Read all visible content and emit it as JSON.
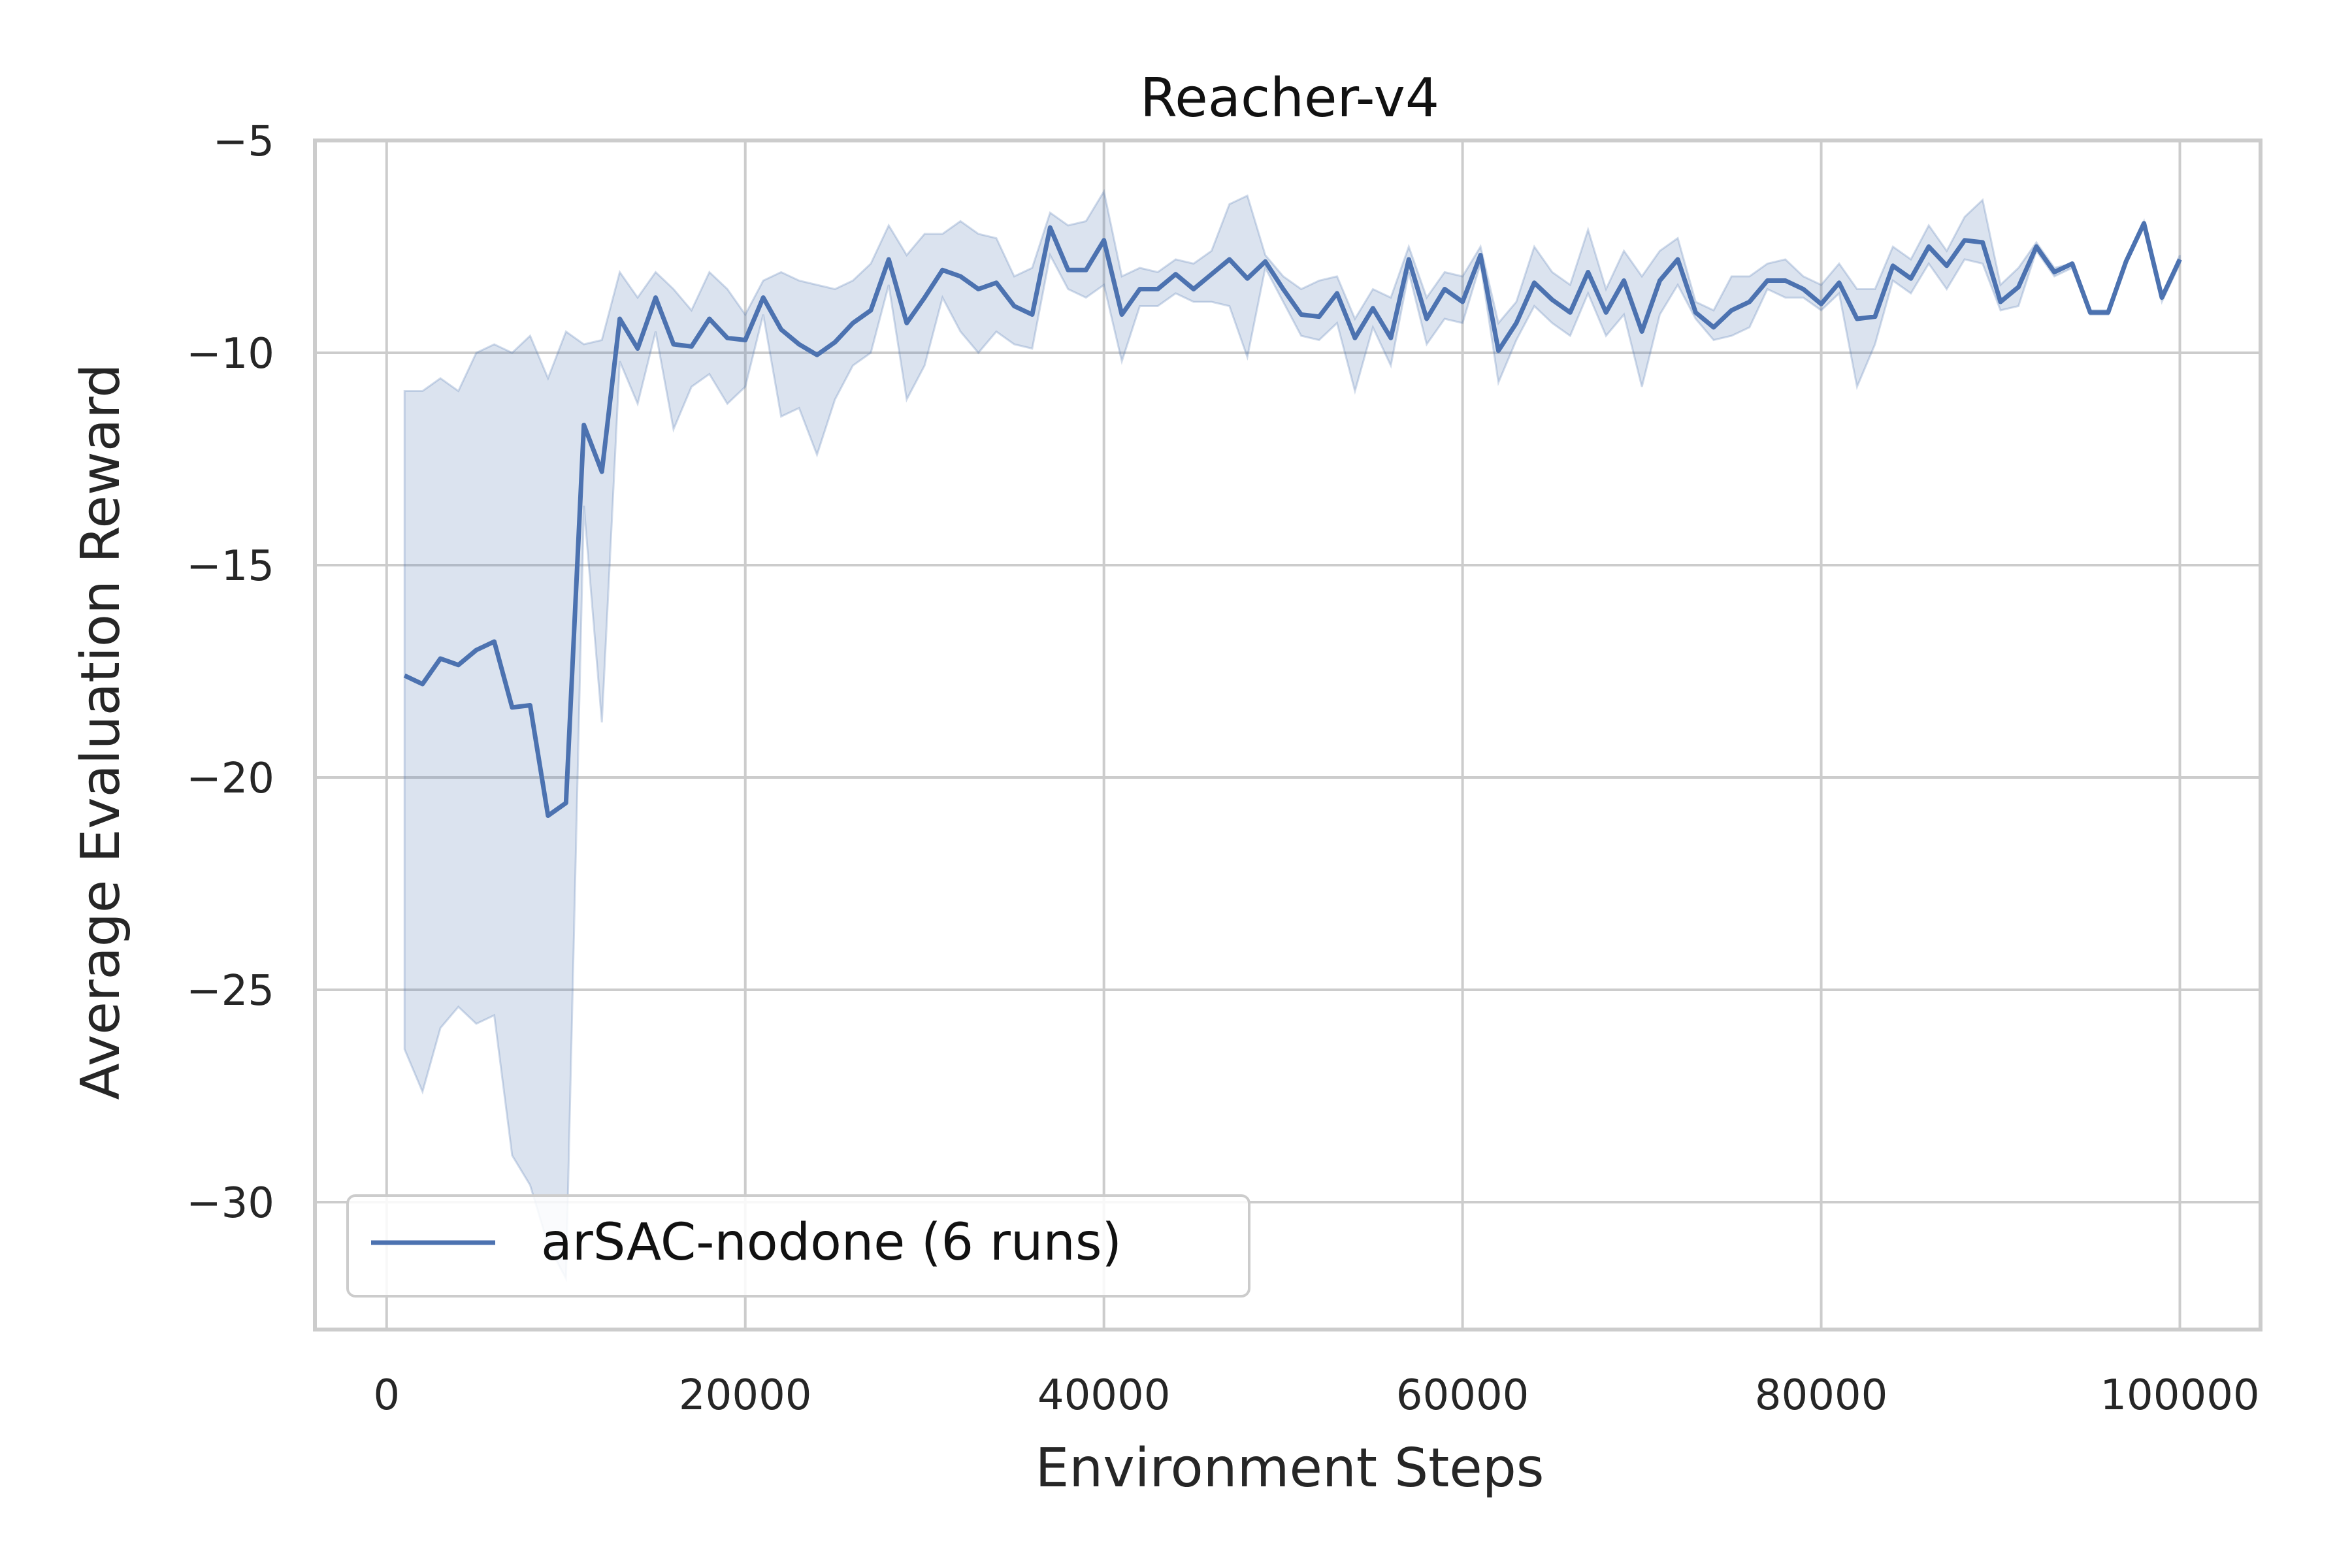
{
  "chart_data": {
    "type": "line",
    "title": "Reacher-v4",
    "xlabel": "Environment Steps",
    "ylabel": "Average Evaluation Reward",
    "xlim": [
      -4000,
      104500
    ],
    "ylim": [
      -33,
      -5
    ],
    "x_ticks": [
      0,
      20000,
      40000,
      60000,
      80000,
      100000
    ],
    "x_tick_labels": [
      "0",
      "20000",
      "40000",
      "60000",
      "80000",
      "100000"
    ],
    "y_ticks": [
      -5,
      -10,
      -15,
      -20,
      -25,
      -30
    ],
    "y_tick_labels": [
      "−5",
      "−10",
      "−15",
      "−20",
      "−25",
      "−30"
    ],
    "grid": true,
    "legend_position": "lower-left",
    "colors": {
      "line": "#4c72b0",
      "band": "#4c72b0"
    },
    "series": [
      {
        "name": "arSAC-nodone (6 runs)",
        "x": [
          1000,
          2000,
          3000,
          4000,
          5000,
          6000,
          7000,
          8000,
          9000,
          10000,
          11000,
          12000,
          13000,
          14000,
          15000,
          16000,
          17000,
          18000,
          19000,
          20000,
          21000,
          22000,
          23000,
          24000,
          25000,
          26000,
          27000,
          28000,
          29000,
          30000,
          31000,
          32000,
          33000,
          34000,
          35000,
          36000,
          37000,
          38000,
          39000,
          40000,
          41000,
          42000,
          43000,
          44000,
          45000,
          46000,
          47000,
          48000,
          49000,
          50000,
          51000,
          52000,
          53000,
          54000,
          55000,
          56000,
          57000,
          58000,
          59000,
          60000,
          61000,
          62000,
          63000,
          64000,
          65000,
          66000,
          67000,
          68000,
          69000,
          70000,
          71000,
          72000,
          73000,
          74000,
          75000,
          76000,
          77000,
          78000,
          79000,
          80000,
          81000,
          82000,
          83000,
          84000,
          85000,
          86000,
          87000,
          88000,
          89000,
          90000,
          91000,
          92000,
          93000,
          94000,
          95000,
          96000,
          97000,
          98000,
          99000,
          100000
        ],
        "y": [
          -17.6,
          -17.8,
          -17.2,
          -17.35,
          -17.0,
          -16.8,
          -18.35,
          -18.3,
          -20.9,
          -20.6,
          -11.7,
          -12.8,
          -9.2,
          -9.9,
          -8.7,
          -9.8,
          -9.85,
          -9.2,
          -9.65,
          -9.7,
          -8.7,
          -9.45,
          -9.8,
          -10.05,
          -9.75,
          -9.3,
          -9.0,
          -7.8,
          -9.3,
          -8.7,
          -8.05,
          -8.2,
          -8.5,
          -8.35,
          -8.9,
          -9.1,
          -7.05,
          -8.05,
          -8.05,
          -7.35,
          -9.1,
          -8.5,
          -8.5,
          -8.15,
          -8.5,
          -8.15,
          -7.8,
          -8.25,
          -7.85,
          -8.5,
          -9.1,
          -9.15,
          -8.6,
          -9.65,
          -8.95,
          -9.65,
          -7.8,
          -9.2,
          -8.5,
          -8.8,
          -7.7,
          -9.95,
          -9.3,
          -8.35,
          -8.75,
          -9.05,
          -8.1,
          -9.05,
          -8.3,
          -9.5,
          -8.3,
          -7.8,
          -9.05,
          -9.4,
          -9.0,
          -8.8,
          -8.3,
          -8.3,
          -8.5,
          -8.85,
          -8.35,
          -9.2,
          -9.15,
          -7.95,
          -8.25,
          -7.5,
          -7.95,
          -7.35,
          -7.4,
          -8.8,
          -8.45,
          -7.5,
          -8.1,
          -7.9,
          -9.05,
          -9.05,
          -7.85,
          -6.95,
          -8.7,
          -7.8
        ],
        "y_upper": [
          -10.9,
          -10.9,
          -10.6,
          -10.9,
          -10.0,
          -9.8,
          -10.0,
          -9.6,
          -10.6,
          -9.5,
          -9.8,
          -9.7,
          -8.1,
          -8.7,
          -8.1,
          -8.5,
          -9.0,
          -8.1,
          -8.5,
          -9.1,
          -8.3,
          -8.1,
          -8.3,
          -8.4,
          -8.5,
          -8.3,
          -7.9,
          -7.0,
          -7.7,
          -7.2,
          -7.2,
          -6.9,
          -7.2,
          -7.3,
          -8.2,
          -8.0,
          -6.7,
          -7.0,
          -6.9,
          -6.2,
          -8.2,
          -8.0,
          -8.1,
          -7.8,
          -7.9,
          -7.6,
          -6.5,
          -6.3,
          -7.7,
          -8.2,
          -8.5,
          -8.3,
          -8.2,
          -9.2,
          -8.5,
          -8.7,
          -7.5,
          -8.7,
          -8.1,
          -8.2,
          -7.5,
          -9.3,
          -8.8,
          -7.5,
          -8.1,
          -8.4,
          -7.1,
          -8.5,
          -7.6,
          -8.2,
          -7.6,
          -7.3,
          -8.8,
          -9.0,
          -8.2,
          -8.2,
          -7.9,
          -7.8,
          -8.2,
          -8.4,
          -7.9,
          -8.5,
          -8.5,
          -7.5,
          -7.8,
          -7.0,
          -7.6,
          -6.8,
          -6.4,
          -8.4,
          -8.0,
          -7.4,
          -8.0,
          -7.9,
          -9.0,
          -9.0,
          -7.8,
          -6.9,
          -8.7,
          -7.7
        ],
        "y_lower": [
          -26.4,
          -27.4,
          -25.9,
          -25.4,
          -25.8,
          -25.6,
          -28.9,
          -29.6,
          -31.0,
          -31.8,
          -13.6,
          -18.7,
          -10.2,
          -11.2,
          -9.5,
          -11.8,
          -10.8,
          -10.5,
          -11.2,
          -10.8,
          -9.1,
          -11.5,
          -11.3,
          -12.4,
          -11.1,
          -10.3,
          -10.0,
          -8.4,
          -11.1,
          -10.3,
          -8.7,
          -9.5,
          -10.0,
          -9.5,
          -9.8,
          -9.9,
          -7.7,
          -8.5,
          -8.7,
          -8.4,
          -10.2,
          -8.9,
          -8.9,
          -8.6,
          -8.8,
          -8.8,
          -8.9,
          -10.1,
          -8.0,
          -8.8,
          -9.6,
          -9.7,
          -9.3,
          -10.9,
          -9.4,
          -10.3,
          -8.1,
          -9.8,
          -9.2,
          -9.3,
          -7.9,
          -10.7,
          -9.7,
          -8.9,
          -9.3,
          -9.6,
          -8.6,
          -9.6,
          -9.1,
          -10.8,
          -9.1,
          -8.4,
          -9.2,
          -9.7,
          -9.6,
          -9.4,
          -8.5,
          -8.7,
          -8.7,
          -9.0,
          -8.6,
          -10.8,
          -9.8,
          -8.3,
          -8.6,
          -7.9,
          -8.5,
          -7.8,
          -7.9,
          -9.0,
          -8.9,
          -7.6,
          -8.2,
          -8.0,
          -9.1,
          -9.1,
          -7.9,
          -7.0,
          -8.8,
          -7.9
        ]
      }
    ]
  }
}
